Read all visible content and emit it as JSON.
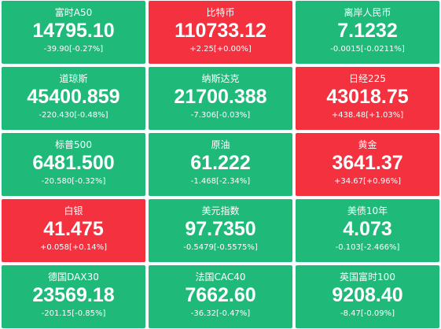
{
  "tiles": [
    {
      "name": "富时A50",
      "price": "14795.10",
      "change": "-39.90[-0.27%]",
      "color": "#1fba7a"
    },
    {
      "name": "比特币",
      "price": "110733.12",
      "change": "+2.25[+0.00%]",
      "color": "#f4313f"
    },
    {
      "name": "离岸人民币",
      "price": "7.1232",
      "change": "-0.0015[-0.0211%]",
      "color": "#1fba7a"
    },
    {
      "name": "道琼斯",
      "price": "45400.859",
      "change": "-220.430[-0.48%]",
      "color": "#1fba7a"
    },
    {
      "name": "纳斯达克",
      "price": "21700.388",
      "change": "-7.306[-0.03%]",
      "color": "#1fba7a"
    },
    {
      "name": "日经225",
      "price": "43018.75",
      "change": "+438.48[+1.03%]",
      "color": "#f4313f"
    },
    {
      "name": "标普500",
      "price": "6481.500",
      "change": "-20.580[-0.32%]",
      "color": "#1fba7a"
    },
    {
      "name": "原油",
      "price": "61.222",
      "change": "-1.468[-2.34%]",
      "color": "#1fba7a"
    },
    {
      "name": "黄金",
      "price": "3641.37",
      "change": "+34.67[+0.96%]",
      "color": "#f4313f"
    },
    {
      "name": "白银",
      "price": "41.475",
      "change": "+0.058[+0.14%]",
      "color": "#f4313f"
    },
    {
      "name": "美元指数",
      "price": "97.7350",
      "change": "-0.5479[-0.5575%]",
      "color": "#1fba7a"
    },
    {
      "name": "美债10年",
      "price": "4.073",
      "change": "-0.103[-2.466%]",
      "color": "#1fba7a"
    },
    {
      "name": "德国DAX30",
      "price": "23569.18",
      "change": "-201.15[-0.85%]",
      "color": "#1fba7a"
    },
    {
      "name": "法国CAC40",
      "price": "7662.60",
      "change": "-36.32[-0.47%]",
      "color": "#1fba7a"
    },
    {
      "name": "英国富时100",
      "price": "9208.40",
      "change": "-8.47[-0.09%]",
      "color": "#1fba7a"
    }
  ]
}
